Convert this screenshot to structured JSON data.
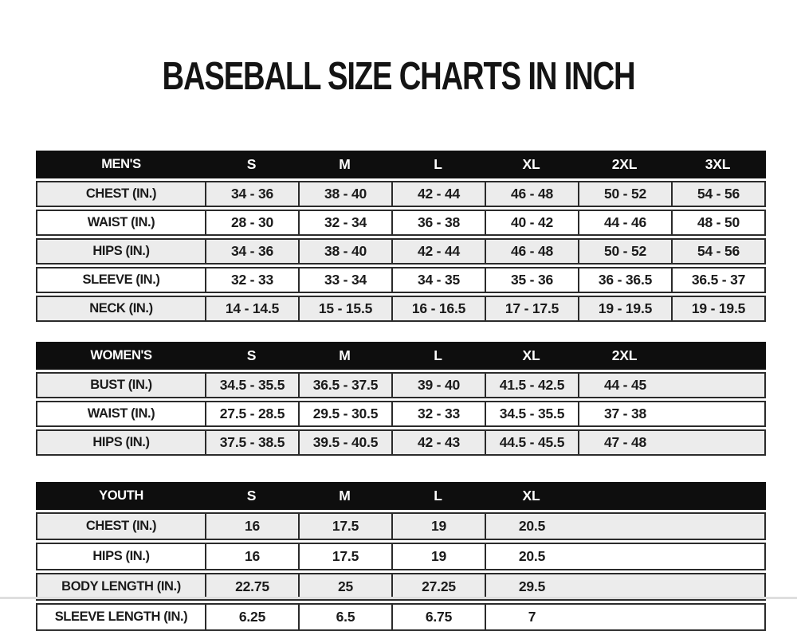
{
  "page": {
    "title": "BASEBALL SIZE CHARTS IN INCH"
  },
  "colors": {
    "page_bg": "#ffffff",
    "header_bg": "#0e0e0e",
    "header_text": "#ffffff",
    "row_bg": "#ffffff",
    "row_alt_bg": "#ececec",
    "border": "#2b2b2b",
    "text": "#1b1b1b",
    "title_text": "#141414",
    "bottom_strip": "#dedede"
  },
  "tables": [
    {
      "id": "mens",
      "header": {
        "label": "MEN'S",
        "sizes": [
          "S",
          "M",
          "L",
          "XL",
          "2XL",
          "3XL"
        ]
      },
      "rows": [
        {
          "label": "CHEST (IN.)",
          "values": [
            "34 - 36",
            "38 - 40",
            "42 - 44",
            "46 - 48",
            "50 - 52",
            "54 - 56"
          ]
        },
        {
          "label": "WAIST (IN.)",
          "values": [
            "28 - 30",
            "32 - 34",
            "36 - 38",
            "40 - 42",
            "44 - 46",
            "48 - 50"
          ]
        },
        {
          "label": "HIPS (IN.)",
          "values": [
            "34 - 36",
            "38 - 40",
            "42 - 44",
            "46 - 48",
            "50 - 52",
            "54 - 56"
          ]
        },
        {
          "label": "SLEEVE (IN.)",
          "values": [
            "32 - 33",
            "33 - 34",
            "34 - 35",
            "35 - 36",
            "36 - 36.5",
            "36.5 - 37"
          ]
        },
        {
          "label": "NECK (IN.)",
          "values": [
            "14 - 14.5",
            "15 - 15.5",
            "16 - 16.5",
            "17 - 17.5",
            "19 - 19.5",
            "19 - 19.5"
          ]
        }
      ]
    },
    {
      "id": "womens",
      "header": {
        "label": "WOMEN'S",
        "sizes": [
          "S",
          "M",
          "L",
          "XL",
          "2XL"
        ]
      },
      "rows": [
        {
          "label": "BUST (IN.)",
          "values": [
            "34.5 - 35.5",
            "36.5 - 37.5",
            "39 - 40",
            "41.5 - 42.5",
            "44 - 45"
          ]
        },
        {
          "label": "WAIST (IN.)",
          "values": [
            "27.5 - 28.5",
            "29.5 - 30.5",
            "32 - 33",
            "34.5 - 35.5",
            "37 - 38"
          ]
        },
        {
          "label": "HIPS (IN.)",
          "values": [
            "37.5 - 38.5",
            "39.5 - 40.5",
            "42 - 43",
            "44.5 - 45.5",
            "47 - 48"
          ]
        }
      ]
    },
    {
      "id": "youth",
      "header": {
        "label": "YOUTH",
        "sizes": [
          "S",
          "M",
          "L",
          "XL"
        ]
      },
      "rows": [
        {
          "label": "CHEST (IN.)",
          "values": [
            "16",
            "17.5",
            "19",
            "20.5"
          ]
        },
        {
          "label": "HIPS (IN.)",
          "values": [
            "16",
            "17.5",
            "19",
            "20.5"
          ]
        },
        {
          "label": "BODY LENGTH (IN.)",
          "values": [
            "22.75",
            "25",
            "27.25",
            "29.5"
          ]
        },
        {
          "label": "SLEEVE LENGTH (IN.)",
          "values": [
            "6.25",
            "6.5",
            "6.75",
            "7"
          ]
        }
      ]
    }
  ]
}
